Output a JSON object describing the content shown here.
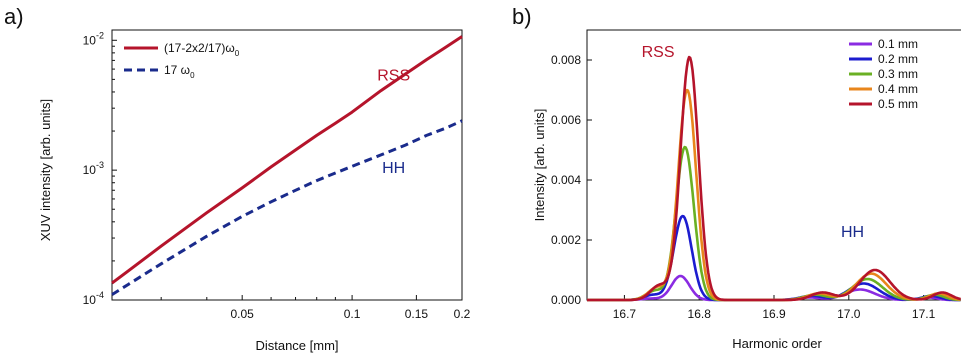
{
  "chart_data": [
    {
      "panel_label": "a)",
      "type": "line",
      "xlabel": "Distance [mm]",
      "ylabel": "XUV intensity [arb. units]",
      "xscale": "log",
      "yscale": "log",
      "xlim": [
        0.022,
        0.2
      ],
      "ylim": [
        0.0001,
        0.012
      ],
      "x_ticks": [
        {
          "value": 0.05,
          "label": "0.05"
        },
        {
          "value": 0.1,
          "label": "0.1"
        },
        {
          "value": 0.15,
          "label": "0.15"
        },
        {
          "value": 0.2,
          "label": "0.2"
        }
      ],
      "y_ticks": [
        {
          "value": 0.0001,
          "base": "10",
          "exp": "-4"
        },
        {
          "value": 0.001,
          "base": "10",
          "exp": "-3"
        },
        {
          "value": 0.01,
          "base": "10",
          "exp": "-2"
        }
      ],
      "legend_position": "top-left",
      "series": [
        {
          "name": "(17-2x2/17)ω0",
          "name_main": "(17-2x2/17)ω",
          "name_sub": "0",
          "color": "#b5142b",
          "style": "solid",
          "x": [
            0.022,
            0.03,
            0.04,
            0.05,
            0.06,
            0.07,
            0.08,
            0.09,
            0.1,
            0.12,
            0.14,
            0.16,
            0.18,
            0.2
          ],
          "y": [
            0.000135,
            0.00026,
            0.00047,
            0.00073,
            0.00106,
            0.00143,
            0.00185,
            0.0023,
            0.0028,
            0.0041,
            0.0055,
            0.0071,
            0.0088,
            0.0107
          ]
        },
        {
          "name": "17 ω0",
          "name_main": "17 ω",
          "name_sub": "0",
          "color": "#1a2b8c",
          "style": "dashed",
          "x": [
            0.022,
            0.03,
            0.04,
            0.05,
            0.06,
            0.07,
            0.08,
            0.09,
            0.1,
            0.12,
            0.14,
            0.16,
            0.18,
            0.2
          ],
          "y": [
            0.00011,
            0.00019,
            0.00031,
            0.00044,
            0.00057,
            0.0007,
            0.00083,
            0.00095,
            0.00107,
            0.00131,
            0.00156,
            0.00185,
            0.0021,
            0.0024
          ]
        }
      ],
      "annotations": [
        {
          "text": "RSS",
          "x": 0.13,
          "y": 0.0049,
          "color": "#b5142b"
        },
        {
          "text": "HH",
          "x": 0.13,
          "y": 0.00095,
          "color": "#1a2b8c"
        }
      ]
    },
    {
      "panel_label": "b)",
      "type": "line",
      "xlabel": "Harmonic order",
      "ylabel": "Intensity [arb. units]",
      "xlim": [
        16.65,
        17.15
      ],
      "ylim": [
        0,
        0.009
      ],
      "x_ticks": [
        "16.7",
        "16.8",
        "16.9",
        "17.0",
        "17.1"
      ],
      "x_tick_values": [
        16.7,
        16.8,
        16.9,
        17.0,
        17.1
      ],
      "y_ticks": [
        "0.000",
        "0.002",
        "0.004",
        "0.006",
        "0.008"
      ],
      "y_tick_values": [
        0,
        0.002,
        0.004,
        0.006,
        0.008
      ],
      "legend_position": "top-right",
      "series": [
        {
          "name": "0.1 mm",
          "color": "#8a2be2",
          "rss_peak": 0.0008,
          "hh_peak": 0.00035
        },
        {
          "name": "0.2 mm",
          "color": "#1c1ccf",
          "rss_peak": 0.0028,
          "hh_peak": 0.00055
        },
        {
          "name": "0.3 mm",
          "color": "#6ab023",
          "rss_peak": 0.0051,
          "hh_peak": 0.0007
        },
        {
          "name": "0.4 mm",
          "color": "#e8861c",
          "rss_peak": 0.007,
          "hh_peak": 0.00088
        },
        {
          "name": "0.5 mm",
          "color": "#b5142b",
          "rss_peak": 0.0081,
          "hh_peak": 0.001
        }
      ],
      "rss_centers": [
        16.775,
        16.778,
        16.781,
        16.784,
        16.787
      ],
      "hh_centers": [
        17.015,
        17.02,
        17.025,
        17.03,
        17.035
      ],
      "annotations": [
        {
          "text": "RSS",
          "x": 16.745,
          "y": 0.0081,
          "color": "#b5142b"
        },
        {
          "text": "HH",
          "x": 17.005,
          "y": 0.0021,
          "color": "#1a2b8c"
        }
      ]
    }
  ]
}
